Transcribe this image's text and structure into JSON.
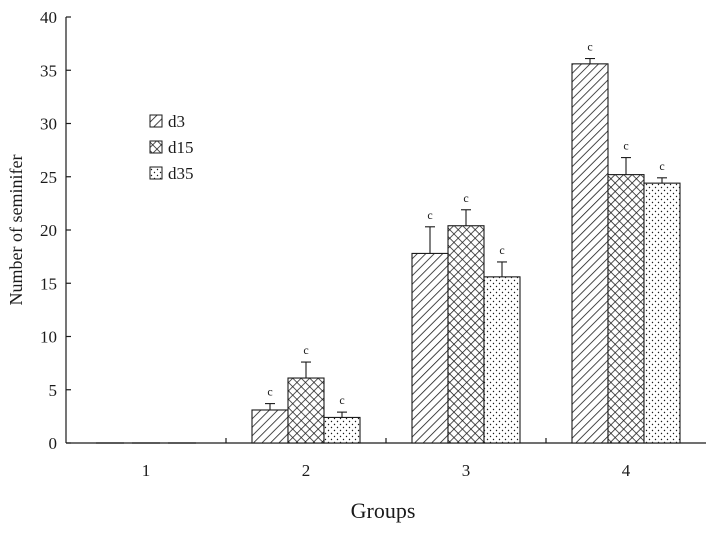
{
  "chart_data": {
    "type": "bar",
    "title": "",
    "xlabel": "Groups",
    "ylabel": "Number of seminifer",
    "categories": [
      "1",
      "2",
      "3",
      "4"
    ],
    "ylim": [
      0,
      40
    ],
    "yticks": [
      "0",
      "5",
      "10",
      "15",
      "20",
      "25",
      "30",
      "35",
      "40"
    ],
    "grid": false,
    "legend_position": "upper-left",
    "series": [
      {
        "name": "d3",
        "pattern": "diagonal-hatch",
        "values": [
          0,
          3.1,
          17.8,
          35.6
        ],
        "errors": [
          0,
          0.6,
          2.5,
          0.5
        ],
        "labels": [
          "",
          "c",
          "c",
          "c"
        ]
      },
      {
        "name": "d15",
        "pattern": "crosshatch",
        "values": [
          0,
          6.1,
          20.4,
          25.2
        ],
        "errors": [
          0,
          1.5,
          1.5,
          1.6
        ],
        "labels": [
          "",
          "c",
          "c",
          "c"
        ]
      },
      {
        "name": "d35",
        "pattern": "dotted",
        "values": [
          0,
          2.4,
          15.6,
          24.4
        ],
        "errors": [
          0,
          0.5,
          1.4,
          0.5
        ],
        "labels": [
          "",
          "c",
          "c",
          "c"
        ]
      }
    ],
    "colors": {
      "stroke": "#1a1a1a",
      "fill_bg": "#ffffff"
    }
  }
}
